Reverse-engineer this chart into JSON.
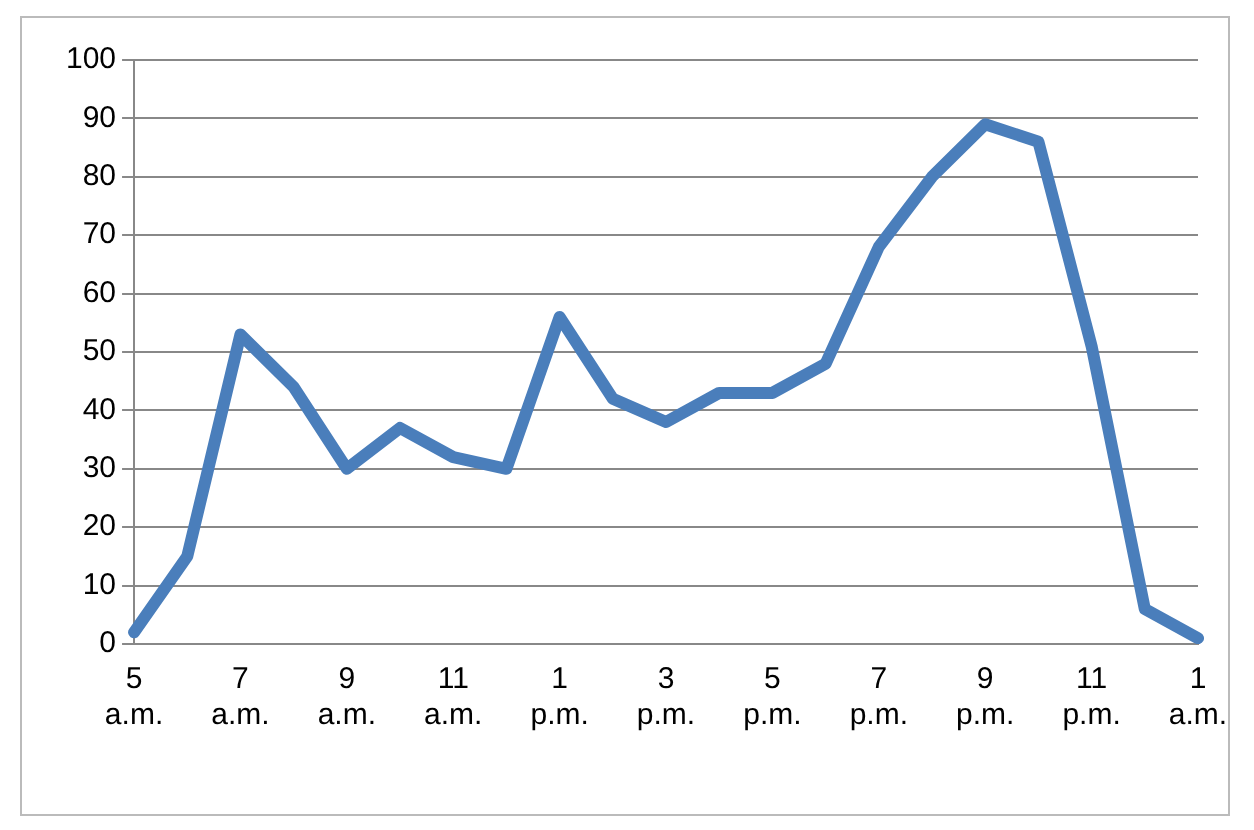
{
  "chart_data": {
    "type": "line",
    "categories": [
      "5 a.m.",
      null,
      "7 a.m.",
      null,
      "9 a.m.",
      null,
      "11 a.m.",
      null,
      "1 p.m.",
      null,
      "3 p.m.",
      null,
      "5 p.m.",
      null,
      "7 p.m.",
      null,
      "9 p.m.",
      null,
      "11 p.m.",
      null,
      "1 a.m."
    ],
    "series": [
      {
        "color": "#4a7ebb",
        "values": [
          2,
          15,
          53,
          44,
          30,
          37,
          32,
          30,
          56,
          42,
          38,
          43,
          43,
          48,
          68,
          80,
          89,
          86,
          51,
          6,
          1
        ]
      }
    ],
    "ylim": [
      0,
      100
    ],
    "yticks": [
      0,
      10,
      20,
      30,
      40,
      50,
      60,
      70,
      80,
      90,
      100
    ],
    "grid": "y",
    "legend": false,
    "marker": "none",
    "line_style": "solid"
  }
}
